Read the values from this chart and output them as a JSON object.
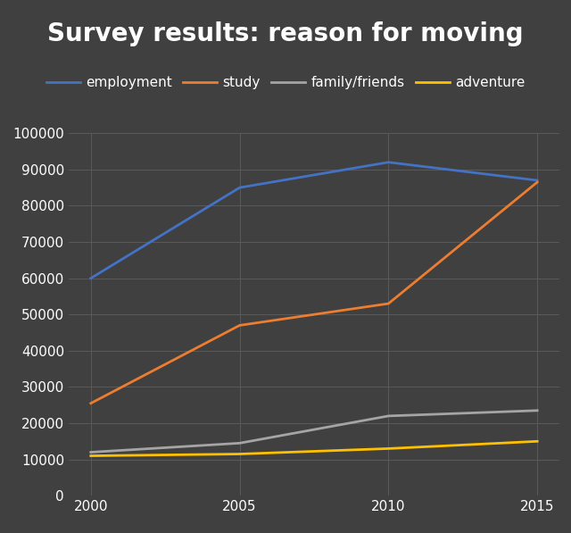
{
  "title": "Survey results: reason for moving",
  "x_values": [
    2000,
    2005,
    2010,
    2015
  ],
  "series": [
    {
      "label": "employment",
      "color": "#4472C4",
      "values": [
        60000,
        85000,
        92000,
        87000
      ]
    },
    {
      "label": "study",
      "color": "#ED7D31",
      "values": [
        25500,
        47000,
        53000,
        86500
      ]
    },
    {
      "label": "family/friends",
      "color": "#A5A5A5",
      "values": [
        12000,
        14500,
        22000,
        23500
      ]
    },
    {
      "label": "adventure",
      "color": "#FFC000",
      "values": [
        11000,
        11500,
        13000,
        15000
      ]
    }
  ],
  "ylim": [
    0,
    100000
  ],
  "yticks": [
    0,
    10000,
    20000,
    30000,
    40000,
    50000,
    60000,
    70000,
    80000,
    90000,
    100000
  ],
  "xticks": [
    2000,
    2005,
    2010,
    2015
  ],
  "background_color": "#404040",
  "grid_color": "#5a5a5a",
  "text_color": "#FFFFFF",
  "line_width": 2.0,
  "title_fontsize": 20,
  "legend_fontsize": 11,
  "tick_fontsize": 11
}
